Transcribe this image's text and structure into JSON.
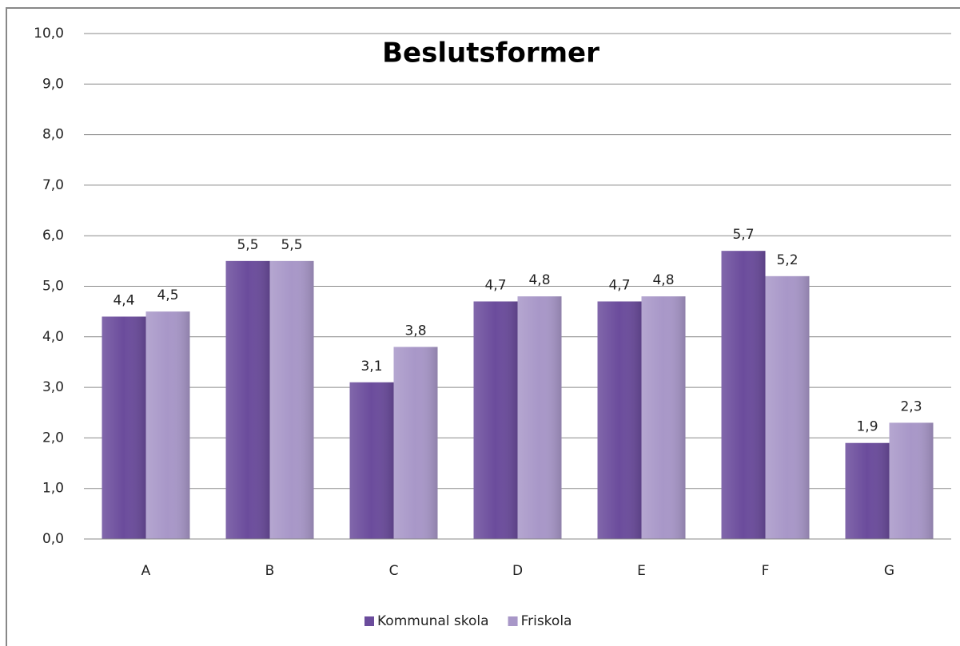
{
  "chart_data": {
    "type": "bar",
    "title": "Beslutsformer",
    "categories": [
      "A",
      "B",
      "C",
      "D",
      "E",
      "F",
      "G"
    ],
    "series": [
      {
        "name": "Kommunal skola",
        "color": "#6b4c9c",
        "values": [
          4.4,
          5.5,
          3.1,
          4.7,
          4.7,
          5.7,
          1.9
        ],
        "value_labels": [
          "4,4",
          "5,5",
          "3,1",
          "4,7",
          "4,7",
          "5,7",
          "1,9"
        ]
      },
      {
        "name": "Friskola",
        "color": "#a897c8",
        "values": [
          4.5,
          5.5,
          3.8,
          4.8,
          4.8,
          5.2,
          2.3
        ],
        "value_labels": [
          "4,5",
          "5,5",
          "3,8",
          "4,8",
          "4,8",
          "5,2",
          "2,3"
        ]
      }
    ],
    "ylim": [
      0,
      10
    ],
    "yticks": [
      {
        "value": 0,
        "label": "0,0"
      },
      {
        "value": 1,
        "label": "1,0"
      },
      {
        "value": 2,
        "label": "2,0"
      },
      {
        "value": 3,
        "label": "3,0"
      },
      {
        "value": 4,
        "label": "4,0"
      },
      {
        "value": 5,
        "label": "5,0"
      },
      {
        "value": 6,
        "label": "6,0"
      },
      {
        "value": 7,
        "label": "7,0"
      },
      {
        "value": 8,
        "label": "8,0"
      },
      {
        "value": 9,
        "label": "9,0"
      },
      {
        "value": 10,
        "label": "10,0"
      }
    ],
    "grid": true,
    "legend": "bottom"
  }
}
